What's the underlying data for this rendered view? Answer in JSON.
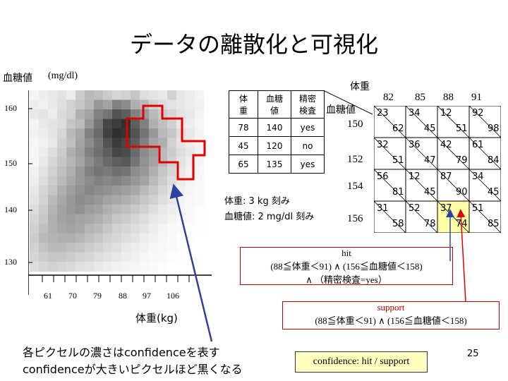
{
  "title": "データの離散化と可視化",
  "heatmap": {
    "ylabel": "血糖値",
    "yunit": "(mg/dl)",
    "yticks": [
      "160",
      "150",
      "140",
      "130"
    ],
    "xticks": [
      "61",
      "70",
      "79",
      "88",
      "97",
      "106"
    ],
    "xlabel": "体重(kg)",
    "pixels": [
      [
        0.05,
        0.08,
        0.1,
        0.12,
        0.08,
        0.22,
        0.3,
        0.28,
        0.22,
        0.18,
        0.2,
        0.25,
        0.15,
        0.12,
        0.1,
        0.2,
        0.1,
        0.08,
        0.05
      ],
      [
        0.08,
        0.06,
        0.1,
        0.14,
        0.2,
        0.25,
        0.32,
        0.45,
        0.4,
        0.55,
        0.5,
        0.35,
        0.3,
        0.2,
        0.15,
        0.12,
        0.1,
        0.08,
        0.06
      ],
      [
        0.1,
        0.12,
        0.08,
        0.16,
        0.2,
        0.35,
        0.4,
        0.55,
        0.6,
        0.75,
        0.7,
        0.55,
        0.45,
        0.3,
        0.22,
        0.18,
        0.12,
        0.1,
        0.05
      ],
      [
        0.05,
        0.1,
        0.12,
        0.15,
        0.25,
        0.3,
        0.45,
        0.6,
        0.8,
        0.85,
        0.9,
        0.7,
        0.55,
        0.35,
        0.28,
        0.2,
        0.1,
        0.08,
        0.04
      ],
      [
        0.06,
        0.08,
        0.12,
        0.18,
        0.3,
        0.38,
        0.55,
        0.65,
        0.82,
        0.9,
        0.88,
        0.75,
        0.6,
        0.45,
        0.3,
        0.25,
        0.15,
        0.1,
        0.05
      ],
      [
        0.04,
        0.06,
        0.1,
        0.2,
        0.28,
        0.4,
        0.5,
        0.6,
        0.75,
        0.85,
        0.8,
        0.7,
        0.55,
        0.4,
        0.35,
        0.2,
        0.12,
        0.08,
        0.05
      ],
      [
        0.05,
        0.08,
        0.15,
        0.22,
        0.35,
        0.42,
        0.55,
        0.62,
        0.7,
        0.8,
        0.78,
        0.65,
        0.5,
        0.42,
        0.3,
        0.22,
        0.15,
        0.1,
        0.06
      ],
      [
        0.04,
        0.1,
        0.18,
        0.25,
        0.32,
        0.4,
        0.5,
        0.58,
        0.65,
        0.7,
        0.72,
        0.6,
        0.48,
        0.4,
        0.3,
        0.2,
        0.12,
        0.08,
        0.05
      ],
      [
        0.06,
        0.12,
        0.2,
        0.28,
        0.35,
        0.45,
        0.55,
        0.6,
        0.58,
        0.62,
        0.6,
        0.5,
        0.45,
        0.35,
        0.25,
        0.18,
        0.1,
        0.06,
        0.04
      ],
      [
        0.08,
        0.15,
        0.22,
        0.3,
        0.38,
        0.45,
        0.5,
        0.55,
        0.52,
        0.55,
        0.5,
        0.45,
        0.4,
        0.3,
        0.22,
        0.15,
        0.08,
        0.05,
        0.03
      ],
      [
        0.1,
        0.18,
        0.25,
        0.35,
        0.42,
        0.48,
        0.52,
        0.5,
        0.48,
        0.45,
        0.42,
        0.38,
        0.3,
        0.25,
        0.18,
        0.12,
        0.06,
        0.04,
        0.02
      ],
      [
        0.12,
        0.2,
        0.3,
        0.38,
        0.45,
        0.5,
        0.48,
        0.45,
        0.4,
        0.38,
        0.35,
        0.3,
        0.25,
        0.2,
        0.15,
        0.1,
        0.05,
        0.03,
        0.02
      ],
      [
        0.15,
        0.22,
        0.32,
        0.4,
        0.45,
        0.48,
        0.42,
        0.4,
        0.35,
        0.3,
        0.28,
        0.24,
        0.2,
        0.15,
        0.1,
        0.08,
        0.04,
        0.02,
        0.01
      ],
      [
        0.18,
        0.25,
        0.35,
        0.4,
        0.42,
        0.4,
        0.38,
        0.35,
        0.3,
        0.25,
        0.22,
        0.18,
        0.15,
        0.1,
        0.08,
        0.05,
        0.03,
        0.02,
        0.01
      ],
      [
        0.2,
        0.28,
        0.35,
        0.38,
        0.4,
        0.38,
        0.32,
        0.3,
        0.25,
        0.2,
        0.18,
        0.15,
        0.12,
        0.08,
        0.05,
        0.03,
        0.02,
        0.01,
        0.01
      ],
      [
        0.22,
        0.3,
        0.33,
        0.35,
        0.35,
        0.32,
        0.28,
        0.25,
        0.2,
        0.18,
        0.15,
        0.12,
        0.08,
        0.06,
        0.04,
        0.02,
        0.01,
        0.01,
        0.0
      ],
      [
        0.2,
        0.26,
        0.3,
        0.3,
        0.28,
        0.26,
        0.22,
        0.2,
        0.16,
        0.14,
        0.1,
        0.08,
        0.06,
        0.04,
        0.03,
        0.02,
        0.01,
        0.0,
        0.0
      ],
      [
        0.18,
        0.22,
        0.25,
        0.25,
        0.22,
        0.2,
        0.18,
        0.15,
        0.12,
        0.1,
        0.08,
        0.06,
        0.04,
        0.03,
        0.02,
        0.01,
        0.0,
        0.0,
        0.0
      ],
      [
        0.15,
        0.18,
        0.2,
        0.18,
        0.16,
        0.14,
        0.12,
        0.1,
        0.08,
        0.06,
        0.05,
        0.04,
        0.03,
        0.02,
        0.01,
        0.0,
        0.0,
        0.0,
        0.0
      ]
    ]
  },
  "source_table": {
    "headers": [
      [
        "体",
        "重"
      ],
      [
        "血糖",
        "値"
      ],
      [
        "精密",
        "検査"
      ]
    ],
    "rows": [
      [
        "78",
        "140",
        "yes"
      ],
      [
        "45",
        "120",
        "no"
      ],
      [
        "65",
        "135",
        "yes"
      ]
    ]
  },
  "step_text": {
    "line1": "体重: 3 kg 刻み",
    "line2": "血糖値: 2 mg/dl 刻み"
  },
  "grid": {
    "col_header": "体重",
    "row_header": "血糖値",
    "cols": [
      "82",
      "85",
      "88",
      "91"
    ],
    "rows": [
      "150",
      "152",
      "154",
      "156"
    ],
    "cells": [
      [
        [
          "23",
          "62"
        ],
        [
          "34",
          "45"
        ],
        [
          "12",
          "51"
        ],
        [
          "92",
          "98"
        ]
      ],
      [
        [
          "32",
          "51"
        ],
        [
          "36",
          "47"
        ],
        [
          "42",
          "79"
        ],
        [
          "61",
          "84"
        ]
      ],
      [
        [
          "56",
          "81"
        ],
        [
          "12",
          "45"
        ],
        [
          "87",
          "90"
        ],
        [
          "34",
          "45"
        ]
      ],
      [
        [
          "31",
          "58"
        ],
        [
          "52",
          "78"
        ],
        [
          "37",
          "74"
        ],
        [
          "51",
          "85"
        ]
      ]
    ]
  },
  "hit_box": {
    "title": "hit",
    "line1": "(88≦体重＜91) ∧ (156≦血糖値＜158)",
    "line2": "∧ （精密検査=yes）"
  },
  "support_box": {
    "title": "support",
    "line1": "(88≦体重＜91) ∧ (156≦血糖値＜158)"
  },
  "confidence_text": "confidence: hit / support",
  "caption": {
    "line1": "各ピクセルの濃さはconfidenceを表す",
    "line2": "confidenceが大きいピクセルほど黒くなる"
  },
  "page_number": "25",
  "colors": {
    "highlight": "#ffffa8",
    "red": "#e00000",
    "arrow_blue": "#3040a0",
    "conf_bg": "#ffffc0"
  }
}
